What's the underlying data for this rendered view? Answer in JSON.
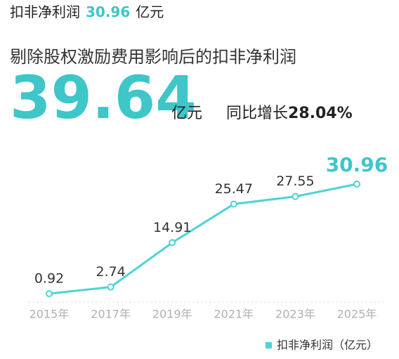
{
  "header": {
    "label": "扣非净利润",
    "value": "30.96",
    "unit": "亿元"
  },
  "subtitle": "剔除股权激励费用影响后的扣非净利润",
  "headline": {
    "value": "39.64",
    "unit": "亿元",
    "growth_label": "同比增长",
    "growth_value": "28.04%"
  },
  "chart_data": {
    "type": "line",
    "categories": [
      "2015年",
      "2017年",
      "2019年",
      "2021年",
      "2023年",
      "2025年"
    ],
    "series": [
      {
        "name": "扣非净利润（亿元）",
        "color": "#4fd3d6",
        "values": [
          0.92,
          2.74,
          14.91,
          25.47,
          27.55,
          30.96
        ]
      }
    ]
  }
}
